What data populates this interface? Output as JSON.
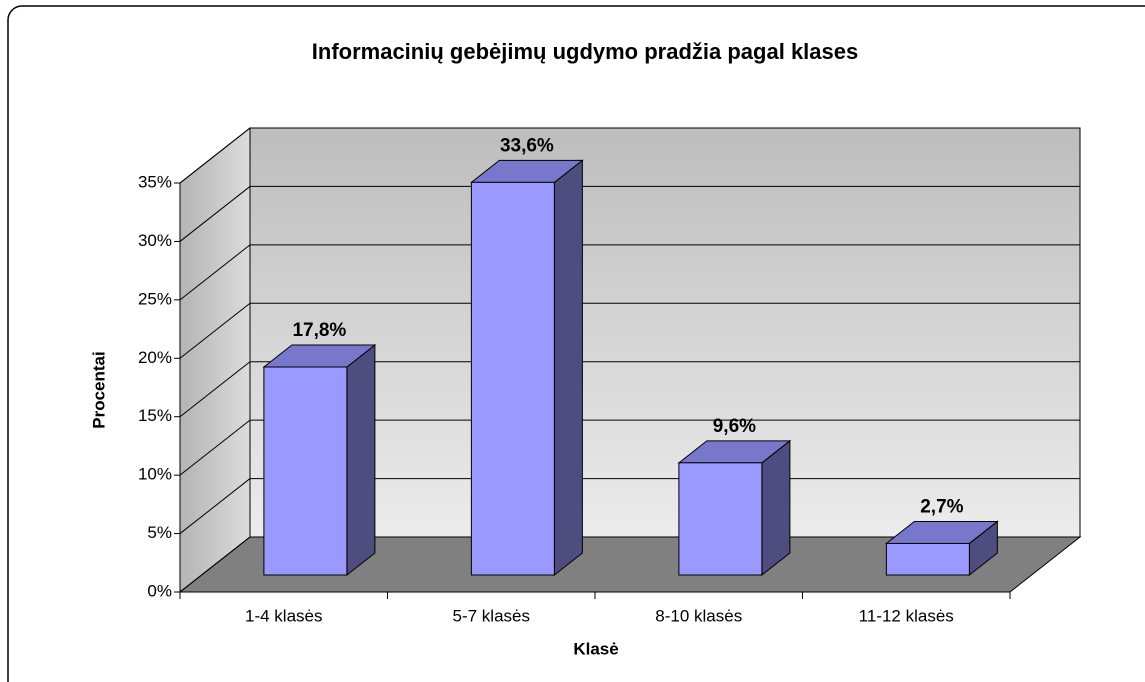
{
  "chart_data": {
    "type": "bar3d",
    "title": "Informacinių gebėjimų ugdymo pradžia pagal klases",
    "x_label": "Klasė",
    "y_label": "Procentai",
    "categories": [
      "1-4 klasės",
      "5-7 klasės",
      "8-10 klasės",
      "11-12 klasės"
    ],
    "values": [
      17.8,
      33.6,
      9.6,
      2.7
    ],
    "value_labels": [
      "17,8%",
      "33,6%",
      "9,6%",
      "2,7%"
    ],
    "color": "#9999ff",
    "ylim": [
      0,
      35
    ],
    "yticks": [
      {
        "value": 0,
        "label": "0%"
      },
      {
        "value": 5,
        "label": "5%"
      },
      {
        "value": 10,
        "label": "10%"
      },
      {
        "value": 15,
        "label": "15%"
      },
      {
        "value": 20,
        "label": "20%"
      },
      {
        "value": 25,
        "label": "25%"
      },
      {
        "value": 30,
        "label": "30%"
      },
      {
        "value": 35,
        "label": "35%"
      }
    ],
    "grid": true
  }
}
